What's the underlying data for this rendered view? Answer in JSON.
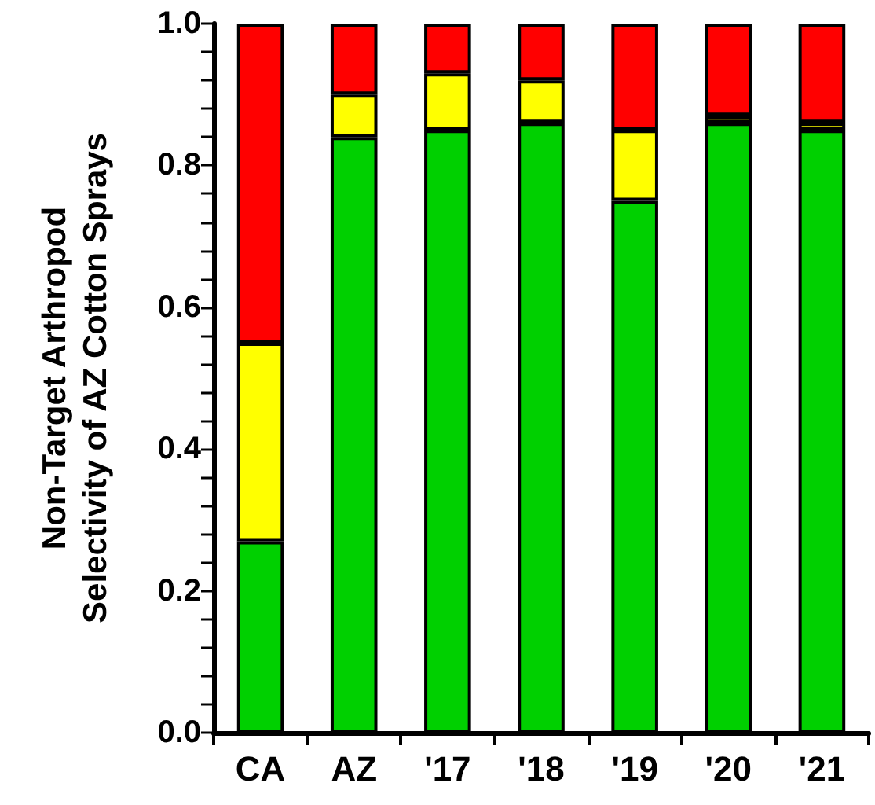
{
  "chart_data": {
    "type": "bar",
    "stacked": true,
    "ylabel": "Non-Target Arthropod\nSelectivity of AZ Cotton Sprays",
    "categories": [
      "CA",
      "AZ",
      "'17",
      "'18",
      "'19",
      "'20",
      "'21"
    ],
    "series": [
      {
        "color": "#00d000",
        "values": [
          0.27,
          0.84,
          0.85,
          0.86,
          0.75,
          0.86,
          0.85
        ]
      },
      {
        "color": "#ffff00",
        "values": [
          0.28,
          0.06,
          0.08,
          0.06,
          0.1,
          0.01,
          0.01
        ]
      },
      {
        "color": "#ff0000",
        "values": [
          0.45,
          0.1,
          0.07,
          0.08,
          0.15,
          0.13,
          0.14
        ]
      }
    ],
    "ylim": [
      0,
      1
    ],
    "yticks": [
      {
        "value": 0,
        "label": "0.0"
      },
      {
        "value": 0.04,
        "label": null
      },
      {
        "value": 0.08,
        "label": null
      },
      {
        "value": 0.12,
        "label": null
      },
      {
        "value": 0.16,
        "label": null
      },
      {
        "value": 0.2,
        "label": "0.2"
      },
      {
        "value": 0.24,
        "label": null
      },
      {
        "value": 0.28,
        "label": null
      },
      {
        "value": 0.32,
        "label": null
      },
      {
        "value": 0.36,
        "label": null
      },
      {
        "value": 0.4,
        "label": "0.4"
      },
      {
        "value": 0.44,
        "label": null
      },
      {
        "value": 0.48,
        "label": null
      },
      {
        "value": 0.52,
        "label": null
      },
      {
        "value": 0.56,
        "label": null
      },
      {
        "value": 0.6,
        "label": "0.6"
      },
      {
        "value": 0.64,
        "label": null
      },
      {
        "value": 0.68,
        "label": null
      },
      {
        "value": 0.72,
        "label": null
      },
      {
        "value": 0.76,
        "label": null
      },
      {
        "value": 0.8,
        "label": "0.8"
      },
      {
        "value": 0.84,
        "label": null
      },
      {
        "value": 0.88,
        "label": null
      },
      {
        "value": 0.92,
        "label": null
      },
      {
        "value": 0.96,
        "label": null
      },
      {
        "value": 1,
        "label": "1.0"
      }
    ],
    "grid": false
  }
}
